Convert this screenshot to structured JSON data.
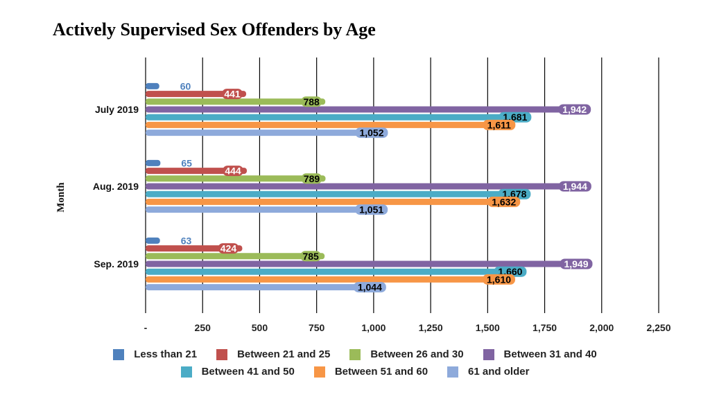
{
  "chart_data": {
    "type": "bar",
    "orientation": "horizontal",
    "title": "Actively Supervised Sex Offenders by Age",
    "xlabel": "",
    "ylabel": "Month",
    "xlim": [
      0,
      2250
    ],
    "x_ticks": [
      0,
      250,
      500,
      750,
      1000,
      1250,
      1500,
      1750,
      2000,
      2250
    ],
    "x_tick_labels": [
      "-",
      "250",
      "500",
      "750",
      "1,000",
      "1,250",
      "1,500",
      "1,750",
      "2,000",
      "2,250"
    ],
    "grid": true,
    "legend_position": "bottom",
    "categories": [
      "July 2019",
      "Aug. 2019",
      "Sep. 2019"
    ],
    "series": [
      {
        "name": "Less than 21",
        "color": "#4F81BD",
        "label_color": "#4F81BD",
        "values": [
          60,
          65,
          63
        ],
        "value_labels": [
          "60",
          "65",
          "63"
        ]
      },
      {
        "name": "Between 21 and 25",
        "color": "#C0504D",
        "label_color": "#ffffff",
        "values": [
          441,
          444,
          424
        ],
        "value_labels": [
          "441",
          "444",
          "424"
        ]
      },
      {
        "name": "Between 26 and 30",
        "color": "#9BBB59",
        "label_color": "#000000",
        "values": [
          788,
          789,
          785
        ],
        "value_labels": [
          "788",
          "789",
          "785"
        ]
      },
      {
        "name": "Between 31 and 40",
        "color": "#8064A2",
        "label_color": "#ffffff",
        "values": [
          1942,
          1944,
          1949
        ],
        "value_labels": [
          "1,942",
          "1,944",
          "1,949"
        ]
      },
      {
        "name": "Between 41 and 50",
        "color": "#4BACC6",
        "label_color": "#000000",
        "values": [
          1681,
          1678,
          1660
        ],
        "value_labels": [
          "1,681",
          "1,678",
          "1,660"
        ]
      },
      {
        "name": "Between 51 and 60",
        "color": "#F79646",
        "label_color": "#000000",
        "values": [
          1611,
          1632,
          1610
        ],
        "value_labels": [
          "1,611",
          "1,632",
          "1,610"
        ]
      },
      {
        "name": "61 and older",
        "color": "#8EAADB",
        "label_color": "#000000",
        "values": [
          1052,
          1051,
          1044
        ],
        "value_labels": [
          "1,052",
          "1,051",
          "1,044"
        ]
      }
    ]
  }
}
